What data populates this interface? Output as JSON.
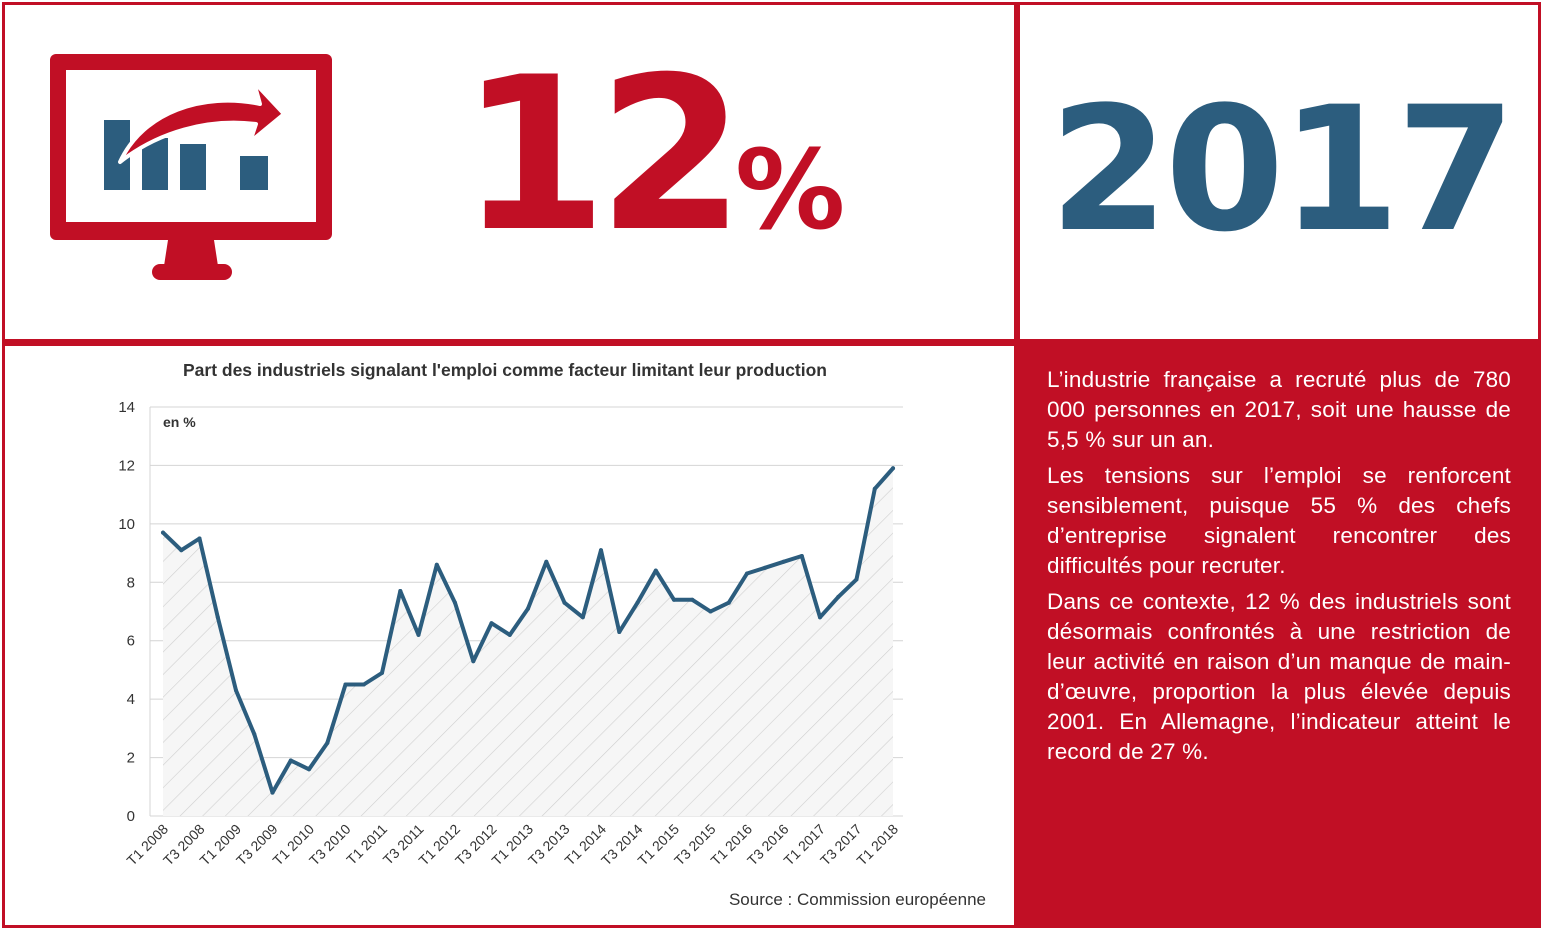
{
  "headline": {
    "percent_value": "12",
    "percent_sign": "%",
    "year": "2017"
  },
  "colors": {
    "brand_red": "#c10f25",
    "brand_blue": "#2c5d7e"
  },
  "icons": {
    "monitor": "monitor-growth-chart-icon"
  },
  "body_text": [
    "L’industrie française a recruté plus de 780 000 personnes en 2017, soit une hausse de 5,5 % sur un an.",
    "Les tensions sur l’emploi se renforcent sensiblement, puisque 55 % des chefs d’entreprise signalent rencontrer des difficultés pour recruter.",
    "Dans ce contexte, 12 % des industriels sont désormais confrontés à une restriction de leur activité en raison d’un manque de main-d’œuvre, proportion la plus élevée depuis 2001. En Allemagne, l’indicateur atteint le record de 27 %."
  ],
  "source": "Source : Commission européenne",
  "chart_data": {
    "type": "line",
    "title": "Part des industriels signalant l'emploi comme facteur limitant leur production",
    "unit_label": "en %",
    "xlabel": "",
    "ylabel": "",
    "ylim": [
      0,
      14
    ],
    "yticks": [
      0,
      2,
      4,
      6,
      8,
      10,
      12,
      14
    ],
    "grid": true,
    "x_tick_labels": [
      "T1 2008",
      "T3 2008",
      "T1 2009",
      "T3 2009",
      "T1 2010",
      "T3 2010",
      "T1 2011",
      "T3 2011",
      "T1 2012",
      "T3 2012",
      "T1 2013",
      "T3 2013",
      "T1 2014",
      "T3 2014",
      "T1 2015",
      "T3 2015",
      "T1 2016",
      "T3 2016",
      "T1 2017",
      "T3 2017",
      "T1 2018"
    ],
    "x": [
      "T1 2008",
      "T2 2008",
      "T3 2008",
      "T4 2008",
      "T1 2009",
      "T2 2009",
      "T3 2009",
      "T4 2009",
      "T1 2010",
      "T2 2010",
      "T3 2010",
      "T4 2010",
      "T1 2011",
      "T2 2011",
      "T3 2011",
      "T4 2011",
      "T1 2012",
      "T2 2012",
      "T3 2012",
      "T4 2012",
      "T1 2013",
      "T2 2013",
      "T3 2013",
      "T4 2013",
      "T1 2014",
      "T2 2014",
      "T3 2014",
      "T4 2014",
      "T1 2015",
      "T2 2015",
      "T3 2015",
      "T4 2015",
      "T1 2016",
      "T2 2016",
      "T3 2016",
      "T4 2016",
      "T1 2017",
      "T2 2017",
      "T3 2017",
      "T4 2017",
      "T1 2018"
    ],
    "series": [
      {
        "values": [
          9.7,
          9.1,
          9.5,
          6.8,
          4.3,
          2.8,
          0.8,
          1.9,
          1.6,
          2.5,
          4.5,
          4.5,
          4.9,
          7.7,
          6.2,
          8.6,
          7.3,
          5.3,
          6.6,
          6.2,
          7.1,
          8.7,
          7.3,
          6.8,
          9.1,
          6.3,
          7.3,
          8.4,
          7.4,
          7.4,
          7.0,
          7.3,
          8.3,
          8.5,
          8.7,
          8.9,
          6.8,
          7.5,
          8.1,
          11.2,
          11.9
        ]
      }
    ]
  }
}
